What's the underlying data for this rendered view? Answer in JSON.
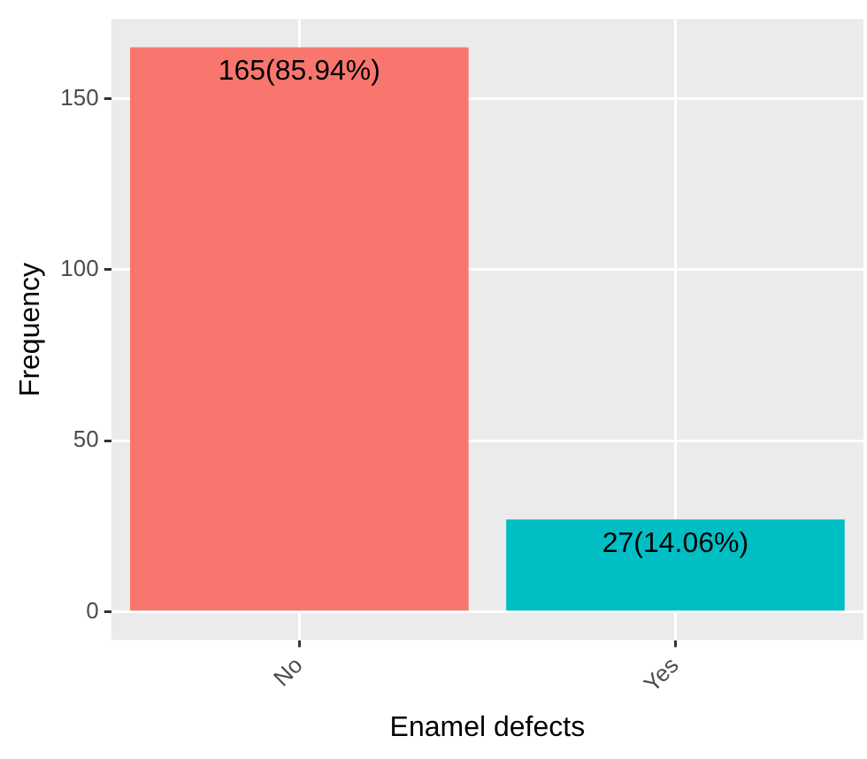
{
  "chart_data": {
    "type": "bar",
    "xlabel": "Enamel defects",
    "ylabel": "Frequency",
    "categories": [
      "No",
      "Yes"
    ],
    "values": [
      165,
      27
    ],
    "colors": [
      "#f8766d",
      "#00bfc4"
    ],
    "value_labels": [
      "165(85.94%)",
      "27(14.06%)"
    ],
    "ylim": [
      -8.25,
      173.25
    ],
    "yticks": [
      0,
      50,
      100,
      150
    ],
    "grid": true,
    "legend": false
  }
}
